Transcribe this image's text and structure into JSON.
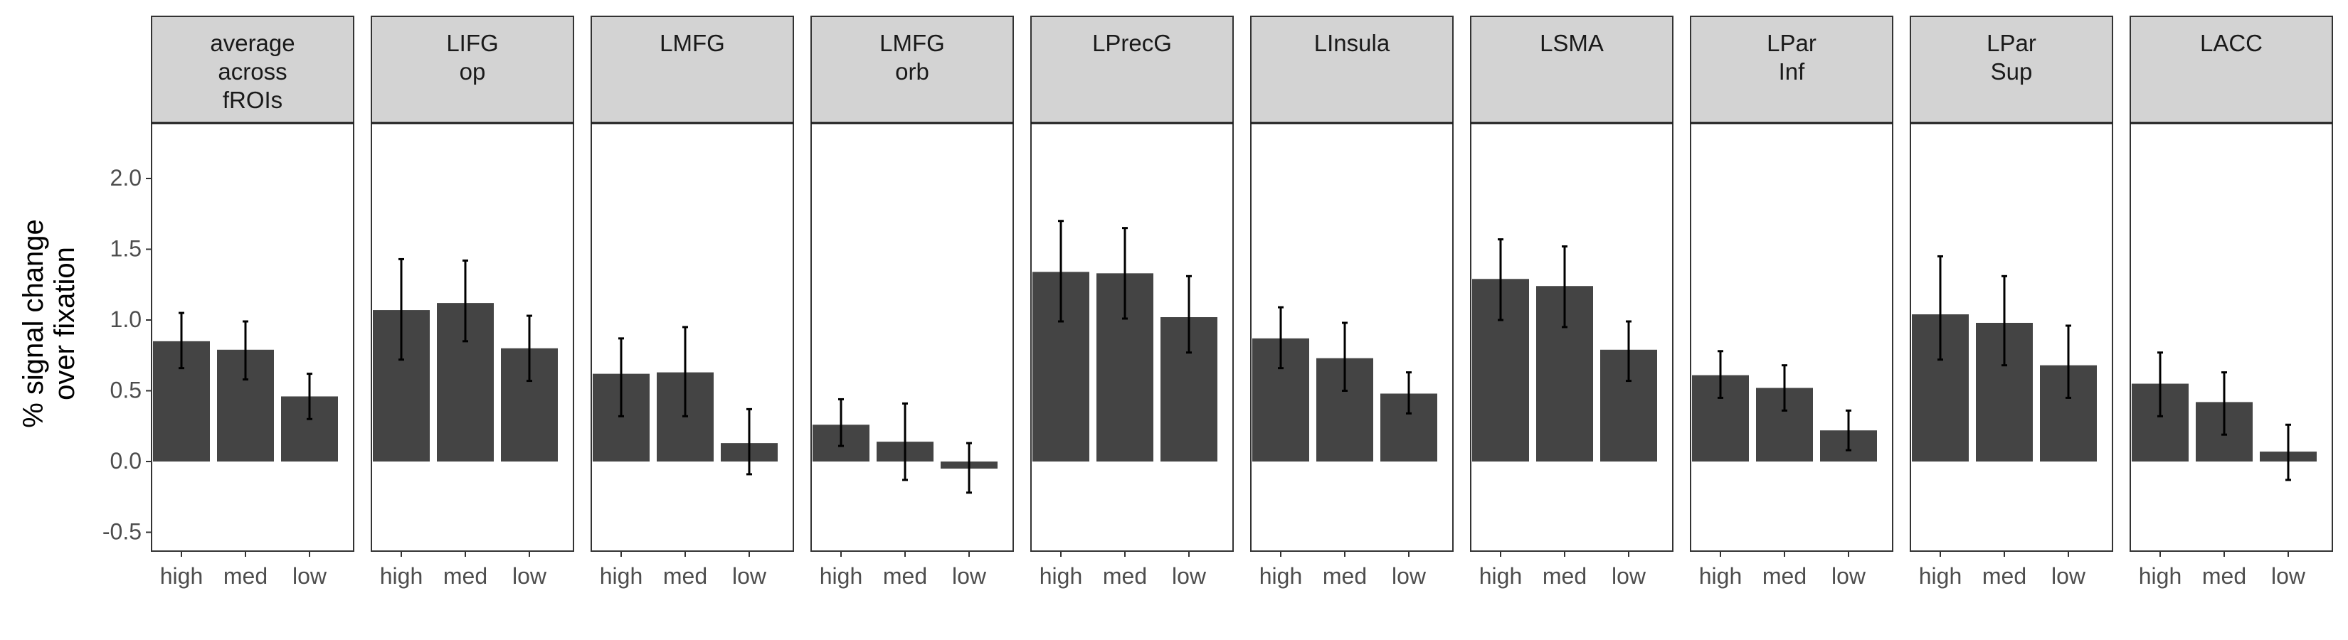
{
  "chart_data": {
    "type": "bar",
    "ylabel": [
      "% signal change",
      "over fixation"
    ],
    "ylim": [
      -0.62,
      2.4
    ],
    "yticks": [
      -0.5,
      0.0,
      0.5,
      1.0,
      1.5,
      2.0
    ],
    "ytick_labels": [
      "-0.5",
      "0.0",
      "0.5",
      "1.0",
      "1.5",
      "2.0"
    ],
    "categories": [
      "high",
      "med",
      "low"
    ],
    "grid": false,
    "colors": {
      "bar": "#444444",
      "errorbar": "#000000",
      "strip": "#d3d3d3",
      "border": "#333333"
    },
    "panels": [
      {
        "title": [
          "average",
          "across",
          "fROIs"
        ],
        "values": [
          0.85,
          0.79,
          0.46
        ],
        "err_low": [
          0.66,
          0.58,
          0.3
        ],
        "err_high": [
          1.05,
          0.99,
          0.62
        ]
      },
      {
        "title": [
          "LIFG",
          "op"
        ],
        "values": [
          1.07,
          1.12,
          0.8
        ],
        "err_low": [
          0.72,
          0.85,
          0.57
        ],
        "err_high": [
          1.43,
          1.42,
          1.03
        ]
      },
      {
        "title": [
          "LMFG"
        ],
        "values": [
          0.62,
          0.63,
          0.13
        ],
        "err_low": [
          0.32,
          0.32,
          -0.09
        ],
        "err_high": [
          0.87,
          0.95,
          0.37
        ]
      },
      {
        "title": [
          "LMFG",
          "orb"
        ],
        "values": [
          0.26,
          0.14,
          -0.05
        ],
        "err_low": [
          0.11,
          -0.13,
          -0.22
        ],
        "err_high": [
          0.44,
          0.41,
          0.13
        ]
      },
      {
        "title": [
          "LPrecG"
        ],
        "values": [
          1.34,
          1.33,
          1.02
        ],
        "err_low": [
          0.99,
          1.01,
          0.77
        ],
        "err_high": [
          1.7,
          1.65,
          1.31
        ]
      },
      {
        "title": [
          "LInsula"
        ],
        "values": [
          0.87,
          0.73,
          0.48
        ],
        "err_low": [
          0.66,
          0.5,
          0.34
        ],
        "err_high": [
          1.09,
          0.98,
          0.63
        ]
      },
      {
        "title": [
          "LSMA"
        ],
        "values": [
          1.29,
          1.24,
          0.79
        ],
        "err_low": [
          1.0,
          0.95,
          0.57
        ],
        "err_high": [
          1.57,
          1.52,
          0.99
        ]
      },
      {
        "title": [
          "LPar",
          "Inf"
        ],
        "values": [
          0.61,
          0.52,
          0.22
        ],
        "err_low": [
          0.45,
          0.36,
          0.08
        ],
        "err_high": [
          0.78,
          0.68,
          0.36
        ]
      },
      {
        "title": [
          "LPar",
          "Sup"
        ],
        "values": [
          1.04,
          0.98,
          0.68
        ],
        "err_low": [
          0.72,
          0.68,
          0.45
        ],
        "err_high": [
          1.45,
          1.31,
          0.96
        ]
      },
      {
        "title": [
          "LACC"
        ],
        "values": [
          0.55,
          0.42,
          0.07
        ],
        "err_low": [
          0.32,
          0.19,
          -0.13
        ],
        "err_high": [
          0.77,
          0.63,
          0.26
        ]
      }
    ]
  }
}
